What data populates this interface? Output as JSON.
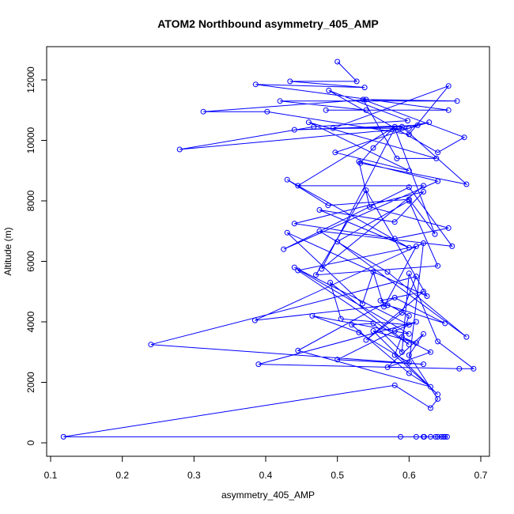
{
  "chart_data": {
    "type": "line",
    "title": "ATOM2 Northbound asymmetry_405_AMP",
    "xlabel": "asymmetry_405_AMP",
    "ylabel": "Altitude (m)",
    "xlim": [
      0.1,
      0.7
    ],
    "ylim": [
      0,
      12000
    ],
    "xticks": [
      "0.1",
      "0.2",
      "0.3",
      "0.4",
      "0.5",
      "0.6",
      "0.7"
    ],
    "yticks": [
      "0",
      "2000",
      "4000",
      "6000",
      "8000",
      "10000",
      "12000"
    ],
    "grid": false,
    "legend": "none",
    "color": "#0000ff",
    "marker": "open-circle",
    "series": [
      {
        "values_x": [
          0.64,
          0.65,
          0.63,
          0.62,
          0.645,
          0.61,
          0.637,
          0.648,
          0.653,
          0.588,
          0.621,
          0.118,
          0.58,
          0.63,
          0.64,
          0.6,
          0.62,
          0.57,
          0.63,
          0.59,
          0.61,
          0.55,
          0.64,
          0.58,
          0.6,
          0.56,
          0.62,
          0.54,
          0.59,
          0.61,
          0.24,
          0.62,
          0.5,
          0.58,
          0.61,
          0.39,
          0.67,
          0.69,
          0.64,
          0.6,
          0.59,
          0.55,
          0.52,
          0.6,
          0.63,
          0.445,
          0.58,
          0.65,
          0.57,
          0.385,
          0.62,
          0.6,
          0.53,
          0.465,
          0.6,
          0.44,
          0.6,
          0.505,
          0.49,
          0.6,
          0.445,
          0.61,
          0.565,
          0.55,
          0.535,
          0.43,
          0.625,
          0.54,
          0.47,
          0.64,
          0.6,
          0.5,
          0.68,
          0.57,
          0.475,
          0.66,
          0.6,
          0.425,
          0.64,
          0.53,
          0.545,
          0.655,
          0.58,
          0.44,
          0.62,
          0.58,
          0.475,
          0.6,
          0.43,
          0.487,
          0.6,
          0.636,
          0.58,
          0.478,
          0.62,
          0.445,
          0.58,
          0.55,
          0.532,
          0.68,
          0.59,
          0.44,
          0.612,
          0.497,
          0.6,
          0.46,
          0.638,
          0.583,
          0.536,
          0.677,
          0.64,
          0.488,
          0.598,
          0.467,
          0.28,
          0.6,
          0.628,
          0.586,
          0.494,
          0.655,
          0.6,
          0.402,
          0.313,
          0.54,
          0.667,
          0.42,
          0.54,
          0.484,
          0.655,
          0.386,
          0.538,
          0.434,
          0.527,
          0.5
        ],
        "values_y": [
          200,
          200,
          200,
          200,
          200,
          200,
          200,
          200,
          200,
          200,
          200,
          200,
          1900,
          1150,
          1450,
          2900,
          3600,
          2500,
          3000,
          3500,
          3300,
          3700,
          1600,
          2900,
          4200,
          4700,
          5000,
          3400,
          4300,
          5500,
          3250,
          2600,
          2750,
          3700,
          4000,
          2600,
          2450,
          2450,
          3350,
          5600,
          3000,
          3950,
          3900,
          2300,
          1850,
          3050,
          4800,
          3950,
          4550,
          4050,
          6600,
          2650,
          3650,
          4200,
          3600,
          5800,
          3900,
          4100,
          5300,
          3250,
          5700,
          6500,
          4500,
          5650,
          4600,
          6950,
          4850,
          8350,
          5550,
          5850,
          8000,
          6650,
          3500,
          5650,
          7000,
          6500,
          8450,
          6400,
          8650,
          9300,
          7800,
          7100,
          6750,
          7250,
          8300,
          7300,
          7700,
          6450,
          8700,
          7850,
          8050,
          6900,
          10400,
          5750,
          8500,
          8500,
          10450,
          9750,
          9250,
          8550,
          10450,
          10350,
          10500,
          9600,
          9000,
          10600,
          9400,
          9400,
          11350,
          10100,
          9600,
          11650,
          10650,
          10450,
          9700,
          10400,
          10600,
          10400,
          10400,
          11800,
          10200,
          10950,
          10950,
          11350,
          11300,
          11300,
          11000,
          11000,
          11000,
          11850,
          11750,
          11950,
          11950,
          12600
        ]
      }
    ]
  }
}
